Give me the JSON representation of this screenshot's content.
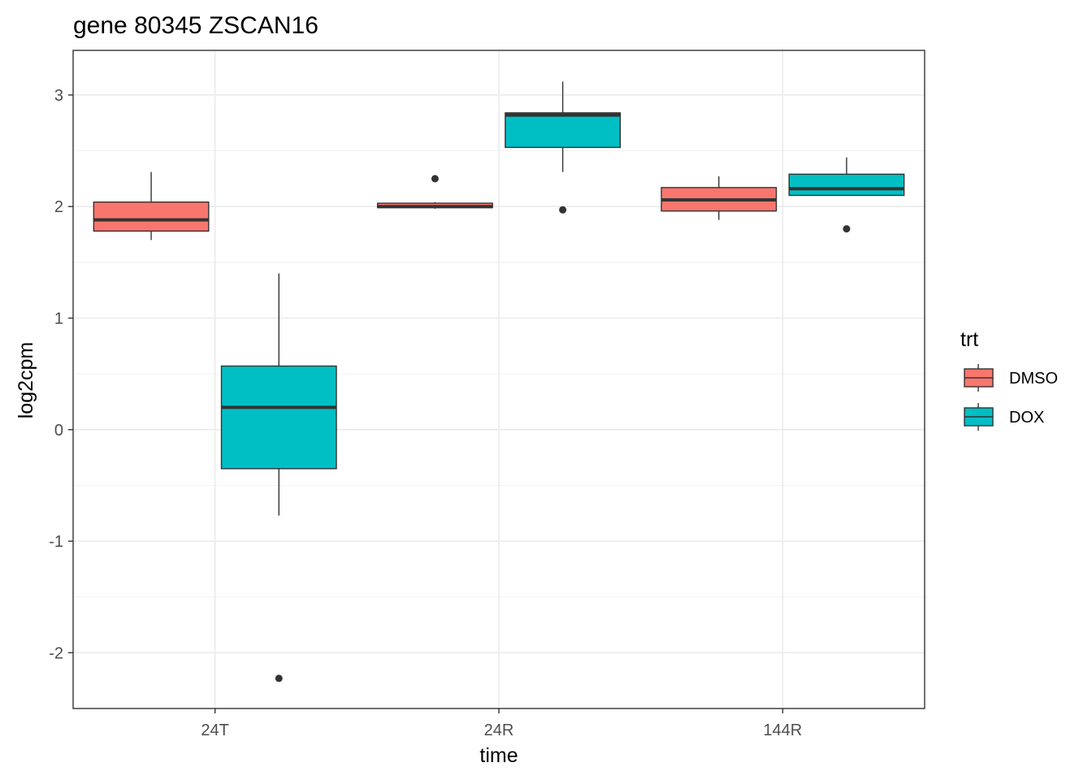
{
  "chart_data": {
    "type": "boxplot",
    "title": "gene 80345 ZSCAN16",
    "xlabel": "time",
    "ylabel": "log2cpm",
    "categories": [
      "24T",
      "24R",
      "144R"
    ],
    "ylim": [
      -2.5,
      3.4
    ],
    "y_ticks": [
      -2,
      -1,
      0,
      1,
      2,
      3
    ],
    "y_tick_labels": [
      "-2",
      "-1",
      "0",
      "1",
      "2",
      "3"
    ],
    "grid": true,
    "legend": {
      "title": "trt",
      "position": "right"
    },
    "series": [
      {
        "name": "DMSO",
        "color": "#F8766D",
        "boxes": [
          {
            "category": "24T",
            "whisker_low": 1.7,
            "q1": 1.78,
            "median": 1.88,
            "q3": 2.04,
            "whisker_high": 2.31,
            "outliers": []
          },
          {
            "category": "24R",
            "whisker_low": 1.98,
            "q1": 1.99,
            "median": 2.0,
            "q3": 2.03,
            "whisker_high": 2.04,
            "outliers": [
              2.25
            ]
          },
          {
            "category": "144R",
            "whisker_low": 1.88,
            "q1": 1.96,
            "median": 2.06,
            "q3": 2.17,
            "whisker_high": 2.27,
            "outliers": []
          }
        ]
      },
      {
        "name": "DOX",
        "color": "#00BFC4",
        "boxes": [
          {
            "category": "24T",
            "whisker_low": -0.77,
            "q1": -0.35,
            "median": 0.2,
            "q3": 0.57,
            "whisker_high": 1.4,
            "outliers": [
              -2.23
            ]
          },
          {
            "category": "24R",
            "whisker_low": 2.31,
            "q1": 2.53,
            "median": 2.82,
            "q3": 2.84,
            "whisker_high": 3.12,
            "outliers": [
              1.97
            ]
          },
          {
            "category": "144R",
            "whisker_low": 2.1,
            "q1": 2.1,
            "median": 2.16,
            "q3": 2.29,
            "whisker_high": 2.44,
            "outliers": [
              1.8
            ]
          }
        ]
      }
    ]
  }
}
